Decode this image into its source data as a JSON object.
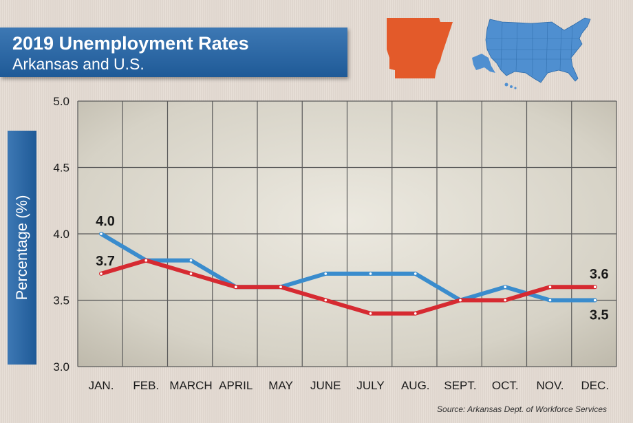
{
  "header": {
    "title": "2019 Unemployment Rates",
    "subtitle": "Arkansas and U.S."
  },
  "icons": {
    "state_map": "arkansas-map-icon",
    "country_map": "us-map-icon"
  },
  "colors": {
    "banner": "#2a65a3",
    "arkansas_line": "#d62a31",
    "us_line": "#3a8ccd",
    "arkansas_map": "#e35a2a",
    "us_map": "#4f8fd0"
  },
  "source": "Source: Arkansas Dept. of Workforce Services",
  "chart_data": {
    "type": "line",
    "title": "2019 Unemployment Rates",
    "subtitle": "Arkansas and U.S.",
    "xlabel": "",
    "ylabel": "Percentage (%)",
    "categories": [
      "JAN.",
      "FEB.",
      "MARCH",
      "APRIL",
      "MAY",
      "JUNE",
      "JULY",
      "AUG.",
      "SEPT.",
      "OCT.",
      "NOV.",
      "DEC."
    ],
    "ylim": [
      3.0,
      5.0
    ],
    "yticks": [
      "3.0",
      "3.5",
      "4.0",
      "4.5",
      "5.0"
    ],
    "grid": true,
    "series": [
      {
        "key": "us",
        "values": [
          4.0,
          3.8,
          3.8,
          3.6,
          3.6,
          3.7,
          3.7,
          3.7,
          3.5,
          3.6,
          3.5,
          3.5
        ]
      },
      {
        "key": "arkansas",
        "values": [
          3.7,
          3.8,
          3.7,
          3.6,
          3.6,
          3.5,
          3.4,
          3.4,
          3.5,
          3.5,
          3.6,
          3.6
        ]
      }
    ],
    "annotations": [
      {
        "text": "4.0",
        "series": "us",
        "index": 0,
        "pos": "above"
      },
      {
        "text": "3.7",
        "series": "arkansas",
        "index": 0,
        "pos": "above"
      },
      {
        "text": "3.6",
        "series": "arkansas",
        "index": 11,
        "pos": "above"
      },
      {
        "text": "3.5",
        "series": "us",
        "index": 11,
        "pos": "below"
      }
    ]
  }
}
